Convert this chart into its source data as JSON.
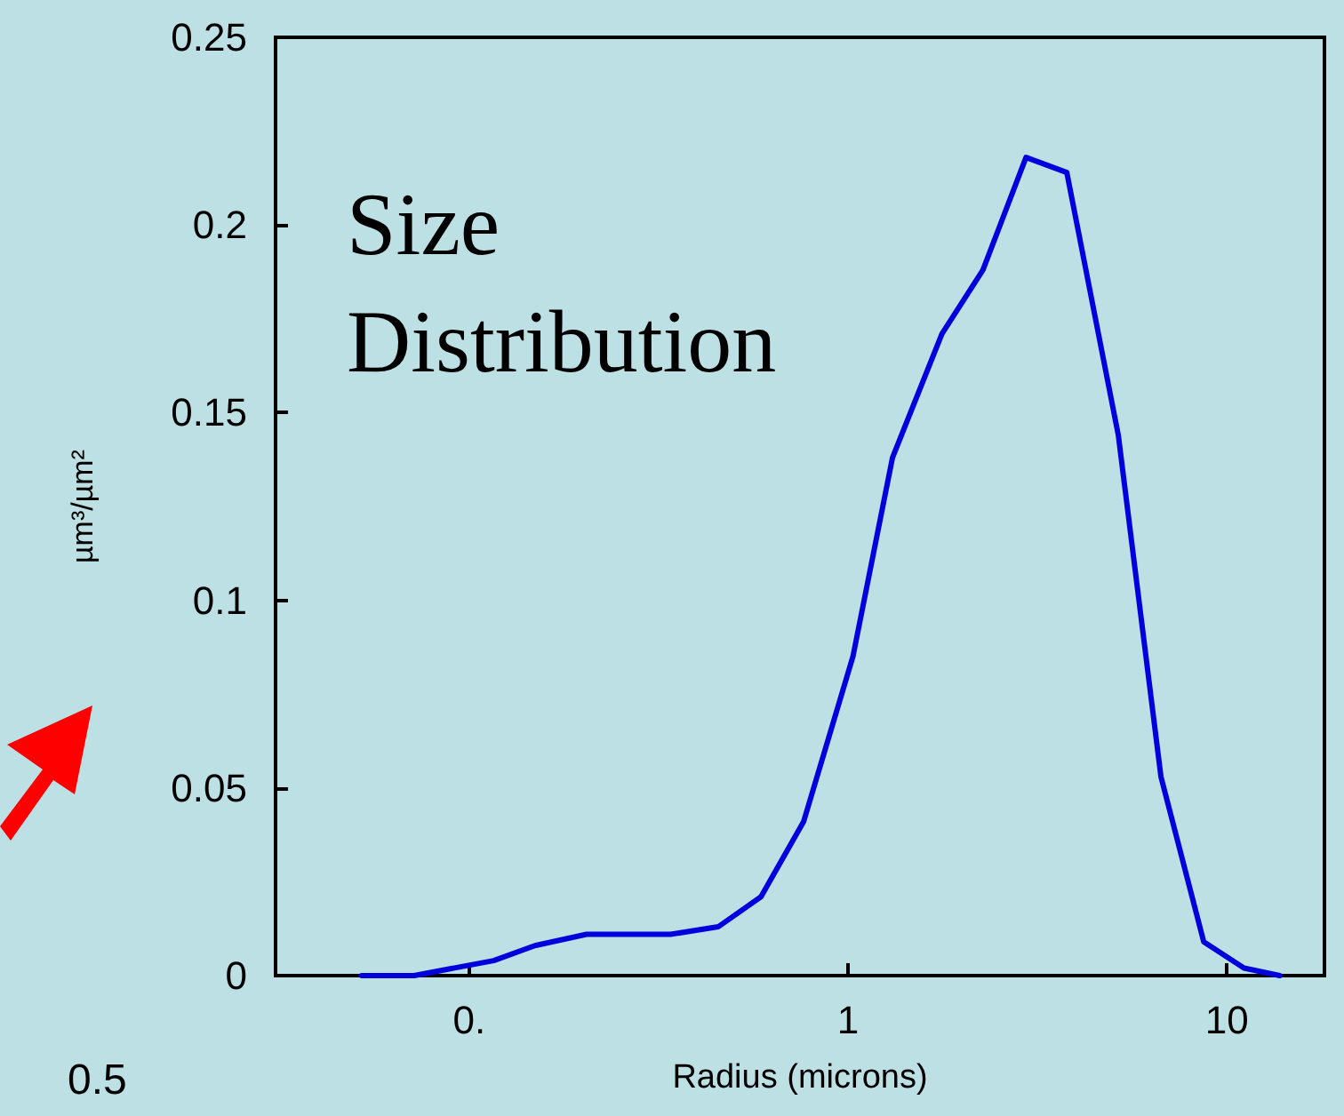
{
  "chart_data": {
    "type": "line",
    "title": "Size Distribution",
    "xlabel": "Radius (microns)",
    "ylabel": "µm³/µm²",
    "log": "x",
    "x": [
      0.052,
      0.0715,
      0.116,
      0.149,
      0.204,
      0.34,
      0.454,
      0.589,
      0.763,
      1.03,
      1.31,
      1.77,
      2.27,
      2.95,
      3.78,
      5.17,
      6.7,
      8.69,
      11.1,
      13.8
    ],
    "series": [
      {
        "color": "#0000dd",
        "values": [
          0,
          0,
          0.004,
          0.008,
          0.011,
          0.011,
          0.013,
          0.021,
          0.041,
          0.085,
          0.138,
          0.171,
          0.188,
          0.218,
          0.214,
          0.144,
          0.053,
          0.009,
          0.002,
          0
        ]
      }
    ],
    "xlim": [
      0.0308,
      18.1
    ],
    "xticks": [
      {
        "value": 0.1,
        "label": "0."
      },
      1,
      10
    ],
    "ylim": [
      0,
      0.25
    ],
    "yticks": [
      0,
      0.05,
      0.1,
      0.15,
      0.2,
      0.25
    ],
    "grid": false,
    "marker": "none",
    "line_style": "solid",
    "annotations": [
      "0.5"
    ]
  }
}
